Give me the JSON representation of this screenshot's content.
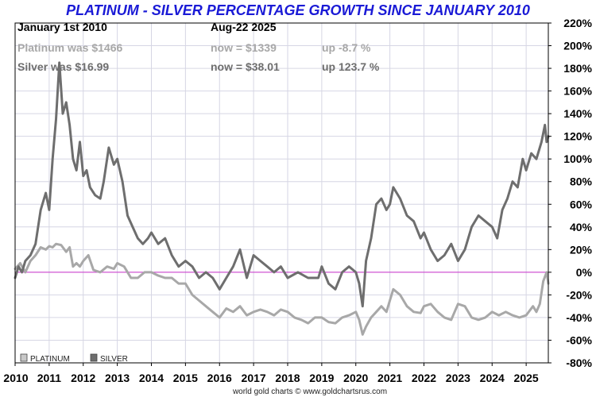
{
  "chart_data": {
    "type": "line",
    "title": "PLATINUM - SILVER PERCENTAGE GROWTH SINCE JANUARY 2010",
    "credit": "world gold charts © www.goldchartsrus.com",
    "info": {
      "start_label": "January 1st 2010",
      "end_label": "Aug-22  2025",
      "platinum_start": "Platinum was $1466",
      "platinum_now": "now = $1339",
      "platinum_change": "up -8.7 %",
      "silver_start": "Silver was $16.99",
      "silver_now": "now = $38.01",
      "silver_change": "up 123.7 %"
    },
    "x_ticks": [
      "2010",
      "2011",
      "2012",
      "2013",
      "2014",
      "2015",
      "2016",
      "2017",
      "2018",
      "2019",
      "2020",
      "2021",
      "2022",
      "2023",
      "2024",
      "2025"
    ],
    "y_ticks": [
      "220%",
      "200%",
      "180%",
      "160%",
      "140%",
      "120%",
      "100%",
      "80%",
      "60%",
      "40%",
      "20%",
      "0%",
      "-20%",
      "-40%",
      "-60%",
      "-80%"
    ],
    "xlim": [
      2010.0,
      2025.65
    ],
    "ylim": [
      -80,
      220
    ],
    "reference_line": 0,
    "grid": true,
    "legend": {
      "placement": "bottom-left",
      "items": [
        "PLATINUM",
        "SILVER"
      ]
    },
    "colors": {
      "platinum": "#a8a8a8",
      "silver": "#6e6e6e",
      "zero_line": "#cc33cc",
      "title": "#1a1ad6"
    },
    "series": [
      {
        "name": "PLATINUM",
        "x": [
          2010.0,
          2010.15,
          2010.3,
          2010.45,
          2010.6,
          2010.75,
          2010.9,
          2011.0,
          2011.1,
          2011.2,
          2011.35,
          2011.5,
          2011.6,
          2011.7,
          2011.8,
          2011.9,
          2012.0,
          2012.15,
          2012.3,
          2012.5,
          2012.7,
          2012.9,
          2013.0,
          2013.2,
          2013.4,
          2013.6,
          2013.8,
          2014.0,
          2014.2,
          2014.4,
          2014.6,
          2014.8,
          2015.0,
          2015.2,
          2015.4,
          2015.6,
          2015.8,
          2016.0,
          2016.2,
          2016.4,
          2016.6,
          2016.8,
          2017.0,
          2017.2,
          2017.4,
          2017.6,
          2017.8,
          2018.0,
          2018.2,
          2018.4,
          2018.6,
          2018.8,
          2019.0,
          2019.2,
          2019.4,
          2019.6,
          2019.8,
          2020.0,
          2020.1,
          2020.2,
          2020.3,
          2020.45,
          2020.6,
          2020.75,
          2020.9,
          2021.0,
          2021.1,
          2021.3,
          2021.5,
          2021.7,
          2021.9,
          2022.0,
          2022.2,
          2022.4,
          2022.6,
          2022.8,
          2023.0,
          2023.2,
          2023.4,
          2023.6,
          2023.8,
          2024.0,
          2024.2,
          2024.4,
          2024.6,
          2024.8,
          2025.0,
          2025.2,
          2025.3,
          2025.4,
          2025.5,
          2025.6,
          2025.65
        ],
        "y": [
          3,
          8,
          0,
          10,
          15,
          22,
          20,
          23,
          22,
          25,
          24,
          18,
          22,
          5,
          8,
          5,
          10,
          15,
          2,
          0,
          5,
          3,
          8,
          5,
          -5,
          -5,
          0,
          0,
          -3,
          -5,
          -5,
          -10,
          -10,
          -20,
          -25,
          -30,
          -35,
          -40,
          -32,
          -35,
          -30,
          -38,
          -35,
          -33,
          -35,
          -38,
          -33,
          -35,
          -40,
          -42,
          -45,
          -40,
          -40,
          -44,
          -45,
          -40,
          -38,
          -35,
          -42,
          -55,
          -48,
          -40,
          -35,
          -30,
          -35,
          -25,
          -15,
          -20,
          -30,
          -35,
          -36,
          -30,
          -28,
          -35,
          -40,
          -42,
          -28,
          -30,
          -40,
          -42,
          -40,
          -35,
          -38,
          -35,
          -38,
          -40,
          -38,
          -30,
          -35,
          -28,
          -8,
          0,
          -10
        ]
      },
      {
        "name": "SILVER",
        "x": [
          2010.0,
          2010.1,
          2010.2,
          2010.3,
          2010.45,
          2010.6,
          2010.75,
          2010.9,
          2011.0,
          2011.1,
          2011.2,
          2011.3,
          2011.4,
          2011.5,
          2011.6,
          2011.7,
          2011.8,
          2011.9,
          2012.0,
          2012.1,
          2012.2,
          2012.35,
          2012.5,
          2012.6,
          2012.75,
          2012.9,
          2013.0,
          2013.15,
          2013.3,
          2013.45,
          2013.6,
          2013.75,
          2013.9,
          2014.0,
          2014.2,
          2014.4,
          2014.6,
          2014.8,
          2015.0,
          2015.2,
          2015.4,
          2015.6,
          2015.8,
          2016.0,
          2016.2,
          2016.4,
          2016.6,
          2016.8,
          2017.0,
          2017.2,
          2017.4,
          2017.6,
          2017.8,
          2018.0,
          2018.3,
          2018.6,
          2018.9,
          2019.0,
          2019.2,
          2019.4,
          2019.6,
          2019.8,
          2020.0,
          2020.1,
          2020.2,
          2020.3,
          2020.45,
          2020.6,
          2020.75,
          2020.9,
          2021.0,
          2021.1,
          2021.3,
          2021.5,
          2021.7,
          2021.9,
          2022.0,
          2022.2,
          2022.4,
          2022.6,
          2022.8,
          2023.0,
          2023.2,
          2023.4,
          2023.6,
          2023.8,
          2024.0,
          2024.15,
          2024.3,
          2024.45,
          2024.6,
          2024.75,
          2024.9,
          2025.0,
          2025.15,
          2025.3,
          2025.45,
          2025.55,
          2025.6,
          2025.65
        ],
        "y": [
          -5,
          5,
          0,
          10,
          15,
          25,
          55,
          70,
          55,
          100,
          135,
          185,
          140,
          150,
          130,
          100,
          90,
          115,
          85,
          90,
          75,
          68,
          65,
          80,
          110,
          95,
          100,
          80,
          50,
          40,
          30,
          25,
          30,
          35,
          25,
          30,
          15,
          5,
          10,
          5,
          -5,
          0,
          -5,
          -15,
          -5,
          5,
          20,
          -5,
          15,
          10,
          5,
          0,
          5,
          -5,
          0,
          -5,
          -5,
          5,
          -10,
          -15,
          0,
          5,
          0,
          -10,
          -30,
          10,
          30,
          60,
          65,
          55,
          60,
          75,
          65,
          50,
          45,
          30,
          35,
          20,
          10,
          15,
          25,
          10,
          20,
          40,
          50,
          45,
          40,
          30,
          55,
          65,
          80,
          75,
          100,
          90,
          105,
          100,
          115,
          130,
          115,
          120
        ]
      }
    ]
  }
}
